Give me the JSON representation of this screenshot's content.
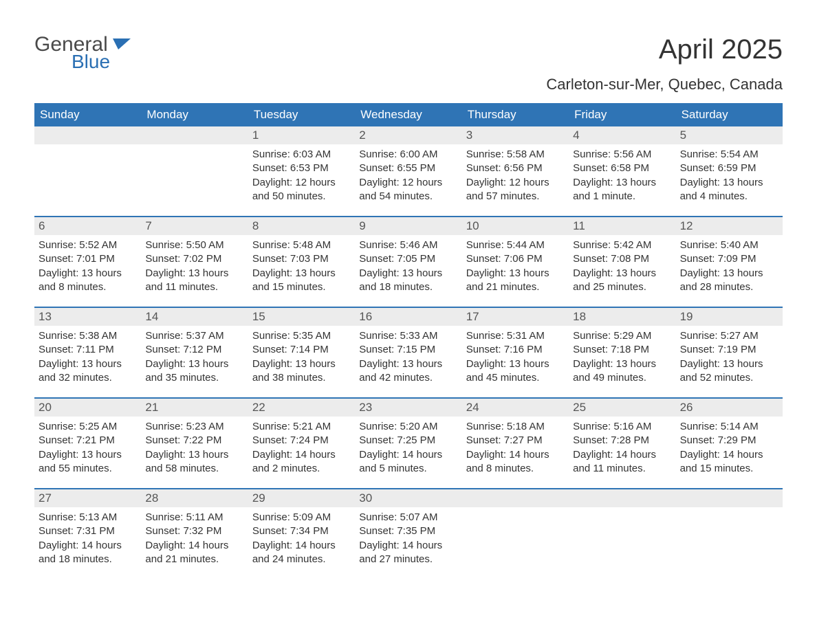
{
  "brand": {
    "word1": "General",
    "word2": "Blue",
    "icon_color": "#2a6fb3",
    "text_color": "#4a4a4a"
  },
  "title": "April 2025",
  "location": "Carleton-sur-Mer, Quebec, Canada",
  "header_bg": "#2f74b5",
  "header_fg": "#ffffff",
  "daynum_bg": "#ececec",
  "daynum_fg": "#555555",
  "border_color": "#2f74b5",
  "body_text_color": "#333333",
  "weekdays": [
    "Sunday",
    "Monday",
    "Tuesday",
    "Wednesday",
    "Thursday",
    "Friday",
    "Saturday"
  ],
  "weeks": [
    [
      {
        "n": "",
        "sunrise": "",
        "sunset": "",
        "daylight": ""
      },
      {
        "n": "",
        "sunrise": "",
        "sunset": "",
        "daylight": ""
      },
      {
        "n": "1",
        "sunrise": "6:03 AM",
        "sunset": "6:53 PM",
        "daylight": "12 hours and 50 minutes."
      },
      {
        "n": "2",
        "sunrise": "6:00 AM",
        "sunset": "6:55 PM",
        "daylight": "12 hours and 54 minutes."
      },
      {
        "n": "3",
        "sunrise": "5:58 AM",
        "sunset": "6:56 PM",
        "daylight": "12 hours and 57 minutes."
      },
      {
        "n": "4",
        "sunrise": "5:56 AM",
        "sunset": "6:58 PM",
        "daylight": "13 hours and 1 minute."
      },
      {
        "n": "5",
        "sunrise": "5:54 AM",
        "sunset": "6:59 PM",
        "daylight": "13 hours and 4 minutes."
      }
    ],
    [
      {
        "n": "6",
        "sunrise": "5:52 AM",
        "sunset": "7:01 PM",
        "daylight": "13 hours and 8 minutes."
      },
      {
        "n": "7",
        "sunrise": "5:50 AM",
        "sunset": "7:02 PM",
        "daylight": "13 hours and 11 minutes."
      },
      {
        "n": "8",
        "sunrise": "5:48 AM",
        "sunset": "7:03 PM",
        "daylight": "13 hours and 15 minutes."
      },
      {
        "n": "9",
        "sunrise": "5:46 AM",
        "sunset": "7:05 PM",
        "daylight": "13 hours and 18 minutes."
      },
      {
        "n": "10",
        "sunrise": "5:44 AM",
        "sunset": "7:06 PM",
        "daylight": "13 hours and 21 minutes."
      },
      {
        "n": "11",
        "sunrise": "5:42 AM",
        "sunset": "7:08 PM",
        "daylight": "13 hours and 25 minutes."
      },
      {
        "n": "12",
        "sunrise": "5:40 AM",
        "sunset": "7:09 PM",
        "daylight": "13 hours and 28 minutes."
      }
    ],
    [
      {
        "n": "13",
        "sunrise": "5:38 AM",
        "sunset": "7:11 PM",
        "daylight": "13 hours and 32 minutes."
      },
      {
        "n": "14",
        "sunrise": "5:37 AM",
        "sunset": "7:12 PM",
        "daylight": "13 hours and 35 minutes."
      },
      {
        "n": "15",
        "sunrise": "5:35 AM",
        "sunset": "7:14 PM",
        "daylight": "13 hours and 38 minutes."
      },
      {
        "n": "16",
        "sunrise": "5:33 AM",
        "sunset": "7:15 PM",
        "daylight": "13 hours and 42 minutes."
      },
      {
        "n": "17",
        "sunrise": "5:31 AM",
        "sunset": "7:16 PM",
        "daylight": "13 hours and 45 minutes."
      },
      {
        "n": "18",
        "sunrise": "5:29 AM",
        "sunset": "7:18 PM",
        "daylight": "13 hours and 49 minutes."
      },
      {
        "n": "19",
        "sunrise": "5:27 AM",
        "sunset": "7:19 PM",
        "daylight": "13 hours and 52 minutes."
      }
    ],
    [
      {
        "n": "20",
        "sunrise": "5:25 AM",
        "sunset": "7:21 PM",
        "daylight": "13 hours and 55 minutes."
      },
      {
        "n": "21",
        "sunrise": "5:23 AM",
        "sunset": "7:22 PM",
        "daylight": "13 hours and 58 minutes."
      },
      {
        "n": "22",
        "sunrise": "5:21 AM",
        "sunset": "7:24 PM",
        "daylight": "14 hours and 2 minutes."
      },
      {
        "n": "23",
        "sunrise": "5:20 AM",
        "sunset": "7:25 PM",
        "daylight": "14 hours and 5 minutes."
      },
      {
        "n": "24",
        "sunrise": "5:18 AM",
        "sunset": "7:27 PM",
        "daylight": "14 hours and 8 minutes."
      },
      {
        "n": "25",
        "sunrise": "5:16 AM",
        "sunset": "7:28 PM",
        "daylight": "14 hours and 11 minutes."
      },
      {
        "n": "26",
        "sunrise": "5:14 AM",
        "sunset": "7:29 PM",
        "daylight": "14 hours and 15 minutes."
      }
    ],
    [
      {
        "n": "27",
        "sunrise": "5:13 AM",
        "sunset": "7:31 PM",
        "daylight": "14 hours and 18 minutes."
      },
      {
        "n": "28",
        "sunrise": "5:11 AM",
        "sunset": "7:32 PM",
        "daylight": "14 hours and 21 minutes."
      },
      {
        "n": "29",
        "sunrise": "5:09 AM",
        "sunset": "7:34 PM",
        "daylight": "14 hours and 24 minutes."
      },
      {
        "n": "30",
        "sunrise": "5:07 AM",
        "sunset": "7:35 PM",
        "daylight": "14 hours and 27 minutes."
      },
      {
        "n": "",
        "sunrise": "",
        "sunset": "",
        "daylight": ""
      },
      {
        "n": "",
        "sunrise": "",
        "sunset": "",
        "daylight": ""
      },
      {
        "n": "",
        "sunrise": "",
        "sunset": "",
        "daylight": ""
      }
    ]
  ],
  "labels": {
    "sunrise": "Sunrise: ",
    "sunset": "Sunset: ",
    "daylight": "Daylight: "
  }
}
